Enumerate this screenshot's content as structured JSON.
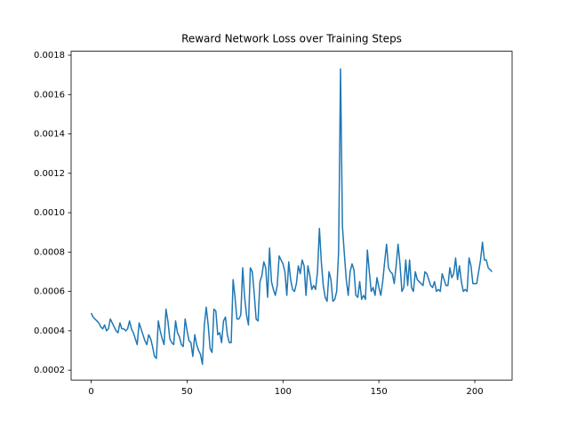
{
  "chart_data": {
    "type": "line",
    "title": "Reward Network Loss over Training Steps",
    "color": "#1f77b4",
    "x": [
      0,
      1,
      2,
      3,
      4,
      5,
      6,
      7,
      8,
      9,
      10,
      11,
      12,
      13,
      14,
      15,
      16,
      17,
      18,
      19,
      20,
      21,
      22,
      23,
      24,
      25,
      26,
      27,
      28,
      29,
      30,
      31,
      32,
      33,
      34,
      35,
      36,
      37,
      38,
      39,
      40,
      41,
      42,
      43,
      44,
      45,
      46,
      47,
      48,
      49,
      50,
      51,
      52,
      53,
      54,
      55,
      56,
      57,
      58,
      59,
      60,
      61,
      62,
      63,
      64,
      65,
      66,
      67,
      68,
      69,
      70,
      71,
      72,
      73,
      74,
      75,
      76,
      77,
      78,
      79,
      80,
      81,
      82,
      83,
      84,
      85,
      86,
      87,
      88,
      89,
      90,
      91,
      92,
      93,
      94,
      95,
      96,
      97,
      98,
      99,
      100,
      101,
      102,
      103,
      104,
      105,
      106,
      107,
      108,
      109,
      110,
      111,
      112,
      113,
      114,
      115,
      116,
      117,
      118,
      119,
      120,
      121,
      122,
      123,
      124,
      125,
      126,
      127,
      128,
      129,
      130,
      131,
      132,
      133,
      134,
      135,
      136,
      137,
      138,
      139,
      140,
      141,
      142,
      143,
      144,
      145,
      146,
      147,
      148,
      149,
      150,
      151,
      152,
      153,
      154,
      155,
      156,
      157,
      158,
      159,
      160,
      161,
      162,
      163,
      164,
      165,
      166,
      167,
      168,
      169,
      170,
      171,
      172,
      173,
      174,
      175,
      176,
      177,
      178,
      179,
      180,
      181,
      182,
      183,
      184,
      185,
      186,
      187,
      188,
      189,
      190,
      191,
      192,
      193,
      194,
      195,
      196,
      197,
      198,
      199,
      200,
      201,
      202,
      203,
      204,
      205,
      206,
      207,
      208,
      209
    ],
    "values": [
      0.00049,
      0.00047,
      0.00046,
      0.00045,
      0.00044,
      0.00042,
      0.00041,
      0.00043,
      0.0004,
      0.00041,
      0.00046,
      0.00044,
      0.00042,
      0.0004,
      0.00039,
      0.00044,
      0.00041,
      0.00041,
      0.0004,
      0.00041,
      0.00045,
      0.00041,
      0.00039,
      0.00036,
      0.00033,
      0.00044,
      0.00041,
      0.00038,
      0.00035,
      0.00033,
      0.00038,
      0.00036,
      0.00032,
      0.00027,
      0.00026,
      0.00045,
      0.0004,
      0.00036,
      0.00033,
      0.00051,
      0.00045,
      0.00036,
      0.00034,
      0.00033,
      0.00045,
      0.00039,
      0.00037,
      0.00033,
      0.00032,
      0.00046,
      0.0004,
      0.00035,
      0.00034,
      0.00027,
      0.00038,
      0.00033,
      0.0003,
      0.00028,
      0.00023,
      0.00043,
      0.00052,
      0.00043,
      0.00031,
      0.00029,
      0.00051,
      0.0005,
      0.00038,
      0.00039,
      0.00034,
      0.00045,
      0.00047,
      0.00038,
      0.00034,
      0.00034,
      0.00066,
      0.00057,
      0.00046,
      0.00046,
      0.00048,
      0.00072,
      0.00057,
      0.00048,
      0.00043,
      0.00072,
      0.0007,
      0.00059,
      0.00046,
      0.00045,
      0.00065,
      0.00068,
      0.00075,
      0.00072,
      0.00057,
      0.00082,
      0.00065,
      0.00061,
      0.00058,
      0.00063,
      0.00078,
      0.00076,
      0.00074,
      0.0007,
      0.00058,
      0.00075,
      0.00066,
      0.00061,
      0.0006,
      0.00064,
      0.00073,
      0.00069,
      0.00076,
      0.00073,
      0.00058,
      0.00073,
      0.00068,
      0.00061,
      0.00063,
      0.00061,
      0.0007,
      0.00092,
      0.00075,
      0.00063,
      0.00057,
      0.00055,
      0.0007,
      0.00066,
      0.00055,
      0.00056,
      0.0006,
      0.0008,
      0.00173,
      0.00093,
      0.00079,
      0.00066,
      0.00058,
      0.0007,
      0.00074,
      0.00071,
      0.00058,
      0.00057,
      0.00065,
      0.00056,
      0.00058,
      0.00056,
      0.00081,
      0.0007,
      0.0006,
      0.00062,
      0.00058,
      0.00067,
      0.00062,
      0.00058,
      0.00065,
      0.00075,
      0.00084,
      0.00072,
      0.0007,
      0.00069,
      0.00064,
      0.00073,
      0.00084,
      0.00074,
      0.0006,
      0.00062,
      0.00076,
      0.00063,
      0.00076,
      0.00062,
      0.0006,
      0.0007,
      0.00066,
      0.00065,
      0.00064,
      0.00063,
      0.0007,
      0.00069,
      0.00066,
      0.00063,
      0.00062,
      0.00065,
      0.0006,
      0.00061,
      0.0006,
      0.00069,
      0.00066,
      0.00063,
      0.00063,
      0.00072,
      0.00067,
      0.00069,
      0.00077,
      0.00066,
      0.00073,
      0.00065,
      0.0006,
      0.00061,
      0.0006,
      0.00077,
      0.00073,
      0.00064,
      0.00064,
      0.00064,
      0.0007,
      0.00076,
      0.00085,
      0.00076,
      0.00076,
      0.00072,
      0.00071,
      0.0007
    ],
    "xlim": [
      -10.45,
      219.45
    ],
    "xticks": [
      0,
      50,
      100,
      150,
      200
    ],
    "ylim": [
      0.00015,
      0.00182
    ],
    "yticks": [
      0.0002,
      0.0004,
      0.0006,
      0.0008,
      {
        "value": 0.001,
        "label": "0.0010"
      },
      0.0012,
      0.0014,
      0.0016,
      0.0018
    ],
    "grid": false
  }
}
